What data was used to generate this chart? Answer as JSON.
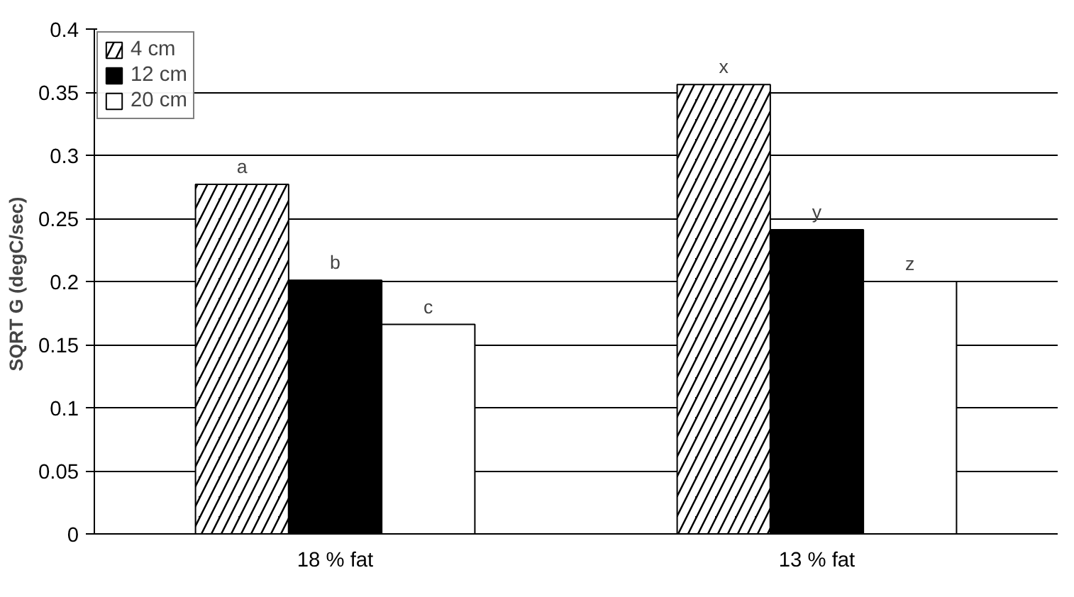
{
  "chart_data": {
    "type": "bar",
    "ylabel": "SQRT  G (degC/sec)",
    "categories": [
      "18 % fat",
      "13 % fat"
    ],
    "series": [
      {
        "name": "4 cm",
        "color": "#000000",
        "values": [
          0.277,
          0.356
        ],
        "value_labels": [
          "a",
          "x"
        ]
      },
      {
        "name": "12 cm",
        "color": "#000000",
        "values": [
          0.201,
          0.241
        ],
        "value_labels": [
          "b",
          "y"
        ]
      },
      {
        "name": "20 cm",
        "color": "#ffffff",
        "values": [
          0.166,
          0.2
        ],
        "value_labels": [
          "c",
          "z"
        ]
      }
    ],
    "ylim": [
      0,
      0.4
    ],
    "yticks": [
      0,
      0.05,
      0.1,
      0.15,
      0.2,
      0.25,
      0.3,
      0.35,
      0.4
    ],
    "grid": "y",
    "legend": "top left"
  }
}
